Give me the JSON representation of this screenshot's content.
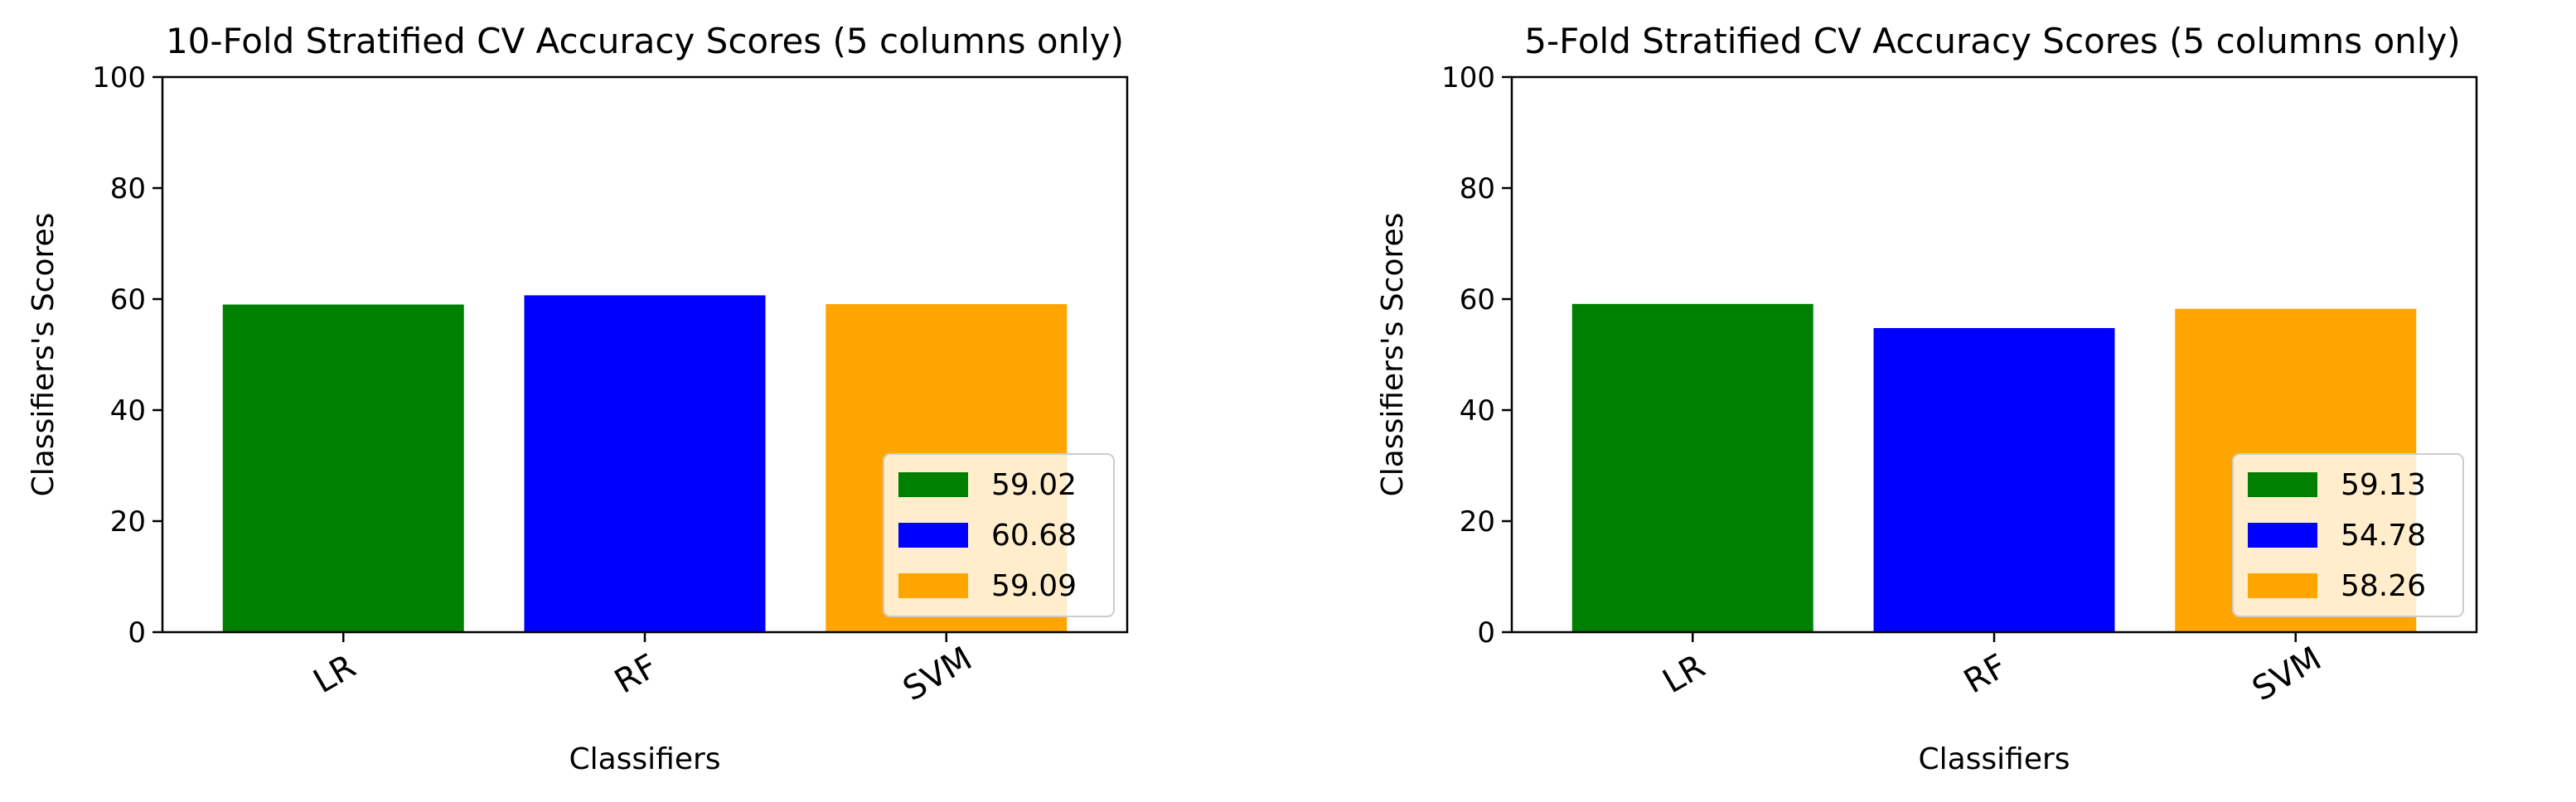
{
  "chart_data": [
    {
      "type": "bar",
      "title": "10-Fold Stratified CV Accuracy Scores (5 columns only)",
      "xlabel": "Classifiers",
      "ylabel": "Classifiers's Scores",
      "categories": [
        "LR",
        "RF",
        "SVM"
      ],
      "values": [
        59.02,
        60.68,
        59.09
      ],
      "colors": [
        "#008000",
        "#0000ff",
        "#ffa500"
      ],
      "legend": [
        "59.02",
        "60.68",
        "59.09"
      ],
      "legend_position": "lower-right",
      "ylim": [
        0,
        100
      ],
      "yticks": [
        0,
        20,
        40,
        60,
        80,
        100
      ],
      "grid": false
    },
    {
      "type": "bar",
      "title": "5-Fold Stratified CV Accuracy Scores (5 columns only)",
      "xlabel": "Classifiers",
      "ylabel": "Classifiers's Scores",
      "categories": [
        "LR",
        "RF",
        "SVM"
      ],
      "values": [
        59.13,
        54.78,
        58.26
      ],
      "colors": [
        "#008000",
        "#0000ff",
        "#ffa500"
      ],
      "legend": [
        "59.13",
        "54.78",
        "58.26"
      ],
      "legend_position": "lower-right",
      "ylim": [
        0,
        100
      ],
      "yticks": [
        0,
        20,
        40,
        60,
        80,
        100
      ],
      "grid": false
    }
  ]
}
